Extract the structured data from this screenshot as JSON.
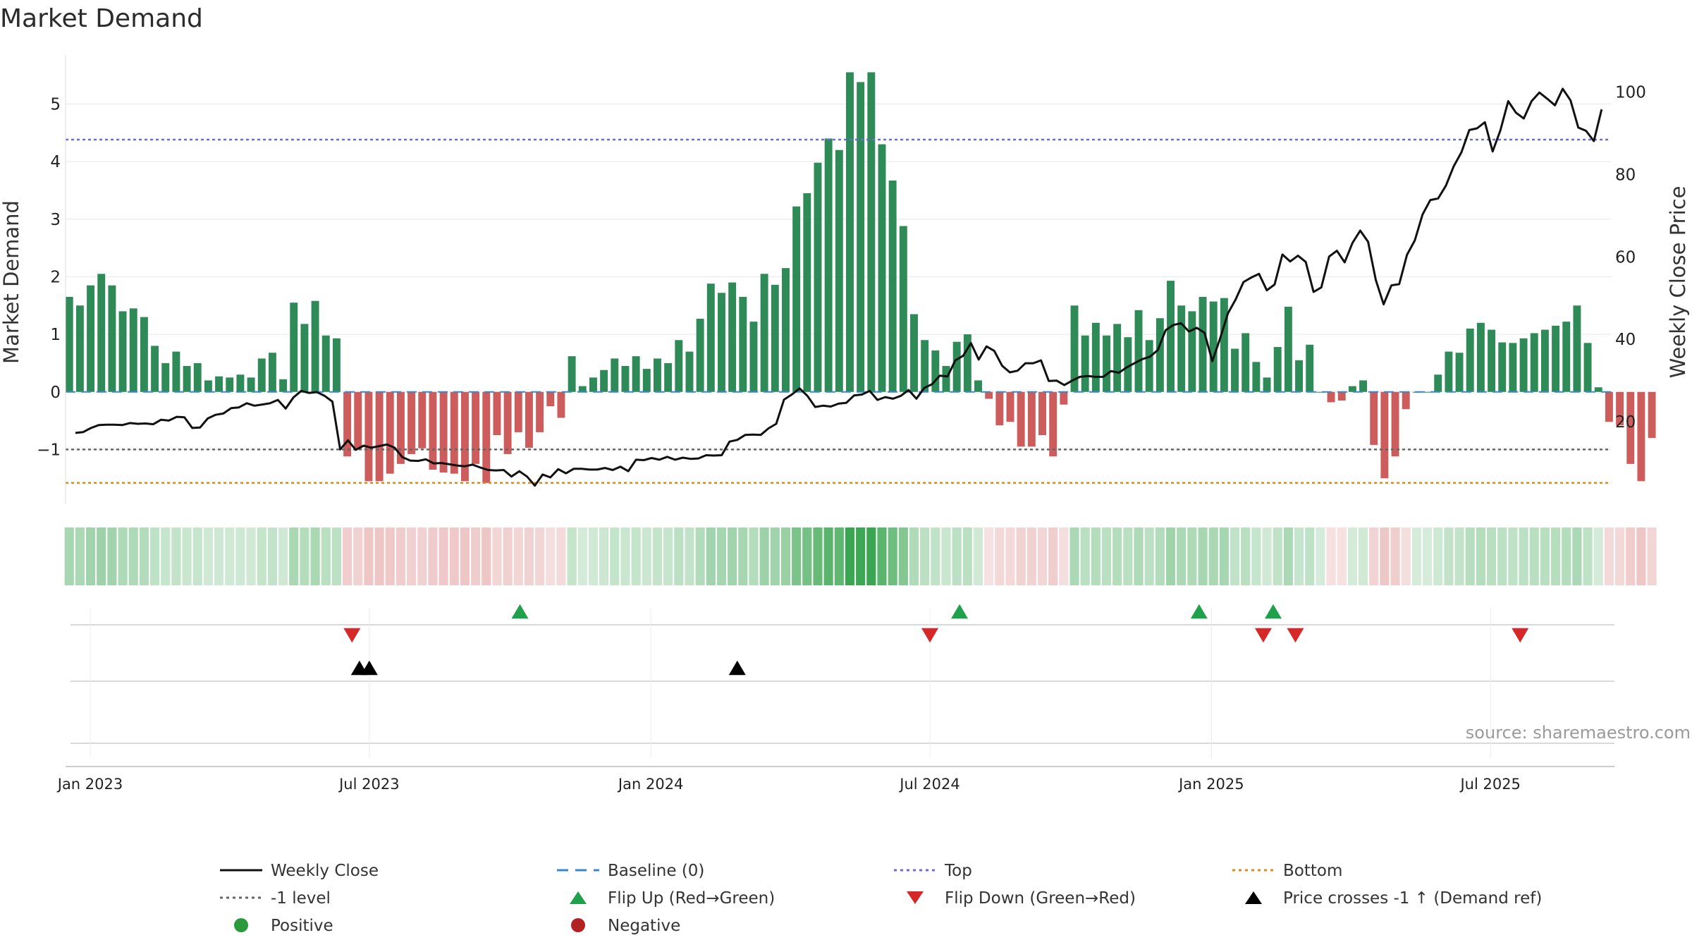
{
  "chart_data": {
    "type": "bar+line",
    "title": "Market Demand",
    "ylabel_left": "Market Demand",
    "ylabel_right": "Weekly Close Price",
    "ylim_left": [
      -1.95,
      5.85
    ],
    "ylim_right": [
      0,
      109
    ],
    "yticks_left": [
      "5",
      "4",
      "3",
      "2",
      "1",
      "0",
      "−1"
    ],
    "ytick_values_left": [
      5,
      4,
      3,
      2,
      1,
      0,
      -1
    ],
    "yticks_right": [
      "100",
      "80",
      "60",
      "40",
      "20"
    ],
    "ytick_values_right": [
      100,
      80,
      60,
      40,
      20
    ],
    "x_range_days": [
      -5,
      620
    ],
    "x_ticks": [
      {
        "label": "Jan 2023",
        "day": 0
      },
      {
        "label": "Jul 2023",
        "day": 113
      },
      {
        "label": "Jan 2024",
        "day": 227
      },
      {
        "label": "Jul 2024",
        "day": 340
      },
      {
        "label": "Jan 2025",
        "day": 454
      },
      {
        "label": "Jul 2025",
        "day": 567
      }
    ],
    "first_bar_day": -8.5,
    "bar_spacing_days": 4.33,
    "demand": [
      1.65,
      1.5,
      1.85,
      2.05,
      1.85,
      1.4,
      1.45,
      1.3,
      0.8,
      0.5,
      0.7,
      0.45,
      0.5,
      0.2,
      0.27,
      0.25,
      0.3,
      0.25,
      0.58,
      0.68,
      0.22,
      1.55,
      1.18,
      1.58,
      0.98,
      0.93,
      -1.12,
      -1.0,
      -1.55,
      -1.55,
      -1.42,
      -1.25,
      -1.08,
      -0.98,
      -1.35,
      -1.4,
      -1.42,
      -1.55,
      -1.25,
      -1.58,
      -0.75,
      -1.08,
      -0.7,
      -0.97,
      -0.7,
      -0.25,
      -0.45,
      0.62,
      0.1,
      0.25,
      0.38,
      0.58,
      0.45,
      0.62,
      0.4,
      0.58,
      0.5,
      0.9,
      0.7,
      1.27,
      1.88,
      1.72,
      1.9,
      1.65,
      1.22,
      2.05,
      1.86,
      2.15,
      3.22,
      3.45,
      3.98,
      4.4,
      4.2,
      5.55,
      5.38,
      5.55,
      4.3,
      3.67,
      2.88,
      1.35,
      0.9,
      0.72,
      0.45,
      0.87,
      1.0,
      0.2,
      -0.12,
      -0.58,
      -0.52,
      -0.95,
      -0.95,
      -0.75,
      -1.12,
      -0.22,
      1.5,
      0.98,
      1.2,
      0.98,
      1.18,
      0.95,
      1.42,
      0.9,
      1.28,
      1.93,
      1.5,
      1.4,
      1.65,
      1.57,
      1.63,
      0.75,
      1.02,
      0.52,
      0.25,
      0.78,
      1.48,
      0.55,
      0.82,
      0.0,
      -0.18,
      -0.15,
      0.1,
      0.2,
      -0.92,
      -1.5,
      -1.12,
      -0.3,
      0.0,
      0.0,
      0.3,
      0.7,
      0.68,
      1.1,
      1.2,
      1.08,
      0.86,
      0.85,
      0.93,
      1.02,
      1.08,
      1.15,
      1.22,
      1.5,
      0.85,
      0.08,
      -0.52,
      -0.58,
      -1.25,
      -1.55,
      -0.8
    ],
    "weekly_close": [
      17.3,
      17.5,
      18.5,
      19.2,
      19.3,
      19.3,
      19.2,
      19.7,
      19.5,
      19.6,
      19.4,
      20.5,
      20.3,
      21.2,
      21.1,
      18.5,
      18.6,
      20.8,
      21.7,
      22.0,
      23.3,
      23.5,
      24.5,
      23.9,
      24.2,
      24.5,
      25.3,
      23.2,
      25.9,
      27.5,
      27.0,
      27.2,
      26.3,
      24.9,
      13.3,
      15.5,
      13.2,
      14.2,
      13.7,
      14.1,
      14.5,
      13.7,
      11.4,
      10.6,
      10.5,
      10.9,
      9.9,
      10.0,
      9.7,
      9.4,
      9.2,
      9.6,
      8.9,
      8.3,
      8.2,
      8.3,
      6.7,
      8.0,
      6.7,
      4.5,
      7.2,
      6.5,
      8.5,
      7.5,
      8.6,
      8.6,
      8.4,
      8.4,
      8.8,
      8.3,
      9.1,
      8.0,
      10.8,
      10.7,
      11.2,
      10.8,
      11.5,
      10.8,
      11.3,
      11.0,
      11.1,
      11.9,
      11.8,
      11.9,
      15.2,
      15.6,
      16.8,
      16.9,
      16.8,
      18.4,
      19.5,
      25.4,
      26.6,
      28.1,
      26.3,
      23.6,
      23.9,
      23.7,
      24.4,
      24.6,
      26.4,
      26.6,
      27.5,
      25.3,
      26.0,
      25.6,
      26.3,
      27.7,
      25.6,
      28.2,
      29.1,
      31.2,
      31.0,
      34.9,
      36.0,
      39.1,
      35.1,
      38.3,
      37.2,
      33.6,
      32.0,
      32.4,
      34.2,
      34.2,
      34.9,
      29.9,
      30.0,
      28.9,
      30.0,
      30.9,
      31.1,
      30.9,
      30.9,
      32.3,
      31.9,
      33.2,
      34.2,
      35.2,
      35.8,
      37.4,
      42.2,
      43.5,
      43.9,
      41.9,
      42.8,
      41.6,
      34.7,
      40.2,
      46.3,
      49.7,
      53.9,
      55.0,
      55.9,
      51.9,
      53.3,
      60.6,
      58.9,
      60.3,
      58.8,
      51.5,
      52.6,
      60.1,
      61.5,
      58.7,
      63.4,
      66.4,
      63.7,
      54.4,
      48.5,
      53.1,
      53.4,
      60.5,
      64.0,
      70.3,
      73.8,
      74.2,
      77.3,
      82.0,
      85.4,
      90.8,
      91.2,
      92.7,
      85.6,
      90.7,
      97.8,
      95.0,
      93.6,
      97.8,
      99.9,
      98.4,
      96.8,
      100.8,
      98.0,
      91.4,
      90.6,
      88.1,
      95.8
    ],
    "top_level": 4.38,
    "bottom_level": -1.58,
    "minus_one_level": -1.0,
    "baseline_level": 0,
    "flip_up_days": [
      174,
      352,
      449,
      479
    ],
    "flip_down_days": [
      106,
      340,
      475,
      488,
      579
    ],
    "price_cross_days": [
      109,
      113,
      262
    ],
    "legend": [
      {
        "label": "Weekly Close",
        "kind": "solid",
        "color": "#111111"
      },
      {
        "label": "Baseline (0)",
        "kind": "dash",
        "color": "#3a87c8"
      },
      {
        "label": "Top",
        "kind": "dot",
        "color": "#6b6bd6"
      },
      {
        "label": "Bottom",
        "kind": "dot",
        "color": "#e08a1e"
      },
      {
        "label": "-1 level",
        "kind": "dot",
        "color": "#666666"
      },
      {
        "label": "Flip Up (Red→Green)",
        "kind": "tri-up",
        "color": "#1fa04a"
      },
      {
        "label": "Flip Down (Green→Red)",
        "kind": "tri-down",
        "color": "#d62828"
      },
      {
        "label": "Price crosses -1 ↑ (Demand ref)",
        "kind": "tri-up",
        "color": "#000000"
      },
      {
        "label": "Positive",
        "kind": "dot-marker",
        "color": "#2a9a3a"
      },
      {
        "label": "Negative",
        "kind": "dot-marker",
        "color": "#b22222"
      }
    ],
    "source": "source: sharemaestro.com"
  },
  "colors": {
    "positive_bar": "#2e8b57",
    "negative_bar": "#cd5c5c",
    "top_line": "#6b6bd6",
    "bottom_line": "#e08a1e",
    "minus_one_line": "#666666",
    "baseline_line": "#3a87c8",
    "flip_up": "#1fa04a",
    "flip_down": "#d62828",
    "price_cross": "#000000"
  }
}
